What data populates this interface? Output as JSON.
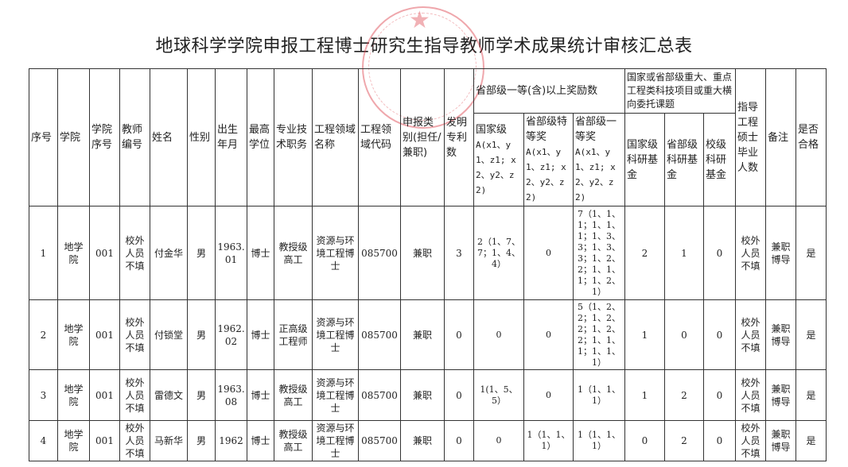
{
  "title": "地球科学学院申报工程博士研究生指导教师学术成果统计审核汇总表",
  "headers": {
    "seq": "序号",
    "college": "学院",
    "college_seq": "学院序号",
    "teacher_id": "教师编号",
    "name": "姓名",
    "gender": "性别",
    "birth": "出生年月",
    "degree": "最高学位",
    "title": "专业技术职务",
    "field_name": "工程领域名称",
    "field_code": "工程领域代码",
    "type": "申报类别(担任/兼职)",
    "patents": "发明专利数",
    "awards_group": "省部级一等(含)以上奖励数",
    "award_national": "国家级",
    "award_national_fmt": "A(x1、y1、z1; x2、y2、z2)",
    "award_special": "省部级特等奖",
    "award_special_fmt": "A(x1、y1、z1; x2、y2、z2)",
    "award_first": "省部级一等奖",
    "award_first_fmt": "A(x1、y1、z1; x2、y2、z2)",
    "projects_group": "国家或省部级重大、重点工程类科技项目或重大横向委托课题",
    "fund_national": "国家级科研基金",
    "fund_provincial": "省部级科研基金",
    "fund_school": "校级科研基金",
    "graduates": "指导工程硕士毕业人数",
    "remark": "备注",
    "qualified": "是否合格"
  },
  "rows": [
    {
      "seq": "1",
      "college": "地学院",
      "college_seq": "001",
      "teacher_id": "校外人员不填",
      "name": "付金华",
      "gender": "男",
      "birth": "1963.01",
      "degree": "博士",
      "title": "教授级高工",
      "field_name": "资源与环境工程博士",
      "field_code": "085700",
      "type": "兼职",
      "patents": "3",
      "award_national": "2（1、7、7；1、4、4）",
      "award_special": "0",
      "award_first": "7（1、1、1；1、1、1；1、3、3；1、3、3；1、2、2；1、1、1；1、2、1）",
      "fund_national": "2",
      "fund_provincial": "1",
      "fund_school": "0",
      "graduates": "校外人员不填",
      "remark": "兼职博导",
      "qualified": "是"
    },
    {
      "seq": "2",
      "college": "地学院",
      "college_seq": "001",
      "teacher_id": "校外人员不填",
      "name": "付锁堂",
      "gender": "男",
      "birth": "1962.02",
      "degree": "博士",
      "title": "正高级工程师",
      "field_name": "资源与环境工程博士",
      "field_code": "085700",
      "type": "兼职",
      "patents": "0",
      "award_national": "0",
      "award_special": "0",
      "award_first": "5（1、2、2；1、2、2；1、2、2；1、1、1；1、1、1）",
      "fund_national": "1",
      "fund_provincial": "0",
      "fund_school": "0",
      "graduates": "校外人员不填",
      "remark": "兼职博导",
      "qualified": "是"
    },
    {
      "seq": "3",
      "college": "地学院",
      "college_seq": "001",
      "teacher_id": "校外人员不填",
      "name": "雷德文",
      "gender": "男",
      "birth": "1963.08",
      "degree": "博士",
      "title": "教授级高工",
      "field_name": "资源与环境工程博士",
      "field_code": "085700",
      "type": "兼职",
      "patents": "0",
      "award_national": "1(1、5、5）",
      "award_special": "0",
      "award_first": "1（1、1、1）",
      "fund_national": "1",
      "fund_provincial": "2",
      "fund_school": "0",
      "graduates": "校外人员不填",
      "remark": "兼职博导",
      "qualified": "是"
    },
    {
      "seq": "4",
      "college": "地学院",
      "college_seq": "001",
      "teacher_id": "校外人员不填",
      "name": "马新华",
      "gender": "男",
      "birth": "1962",
      "degree": "博士",
      "title": "教授级高工",
      "field_name": "资源与环境工程博士",
      "field_code": "085700",
      "type": "兼职",
      "patents": "0",
      "award_national": "0",
      "award_special": "1（1、1、1）",
      "award_first": "1（1、1、1）",
      "fund_national": "0",
      "fund_provincial": "2",
      "fund_school": "0",
      "graduates": "校外人员不填",
      "remark": "兼职博导",
      "qualified": "是"
    }
  ],
  "colors": {
    "stamp": "#dc3c46",
    "border": "#333333"
  }
}
